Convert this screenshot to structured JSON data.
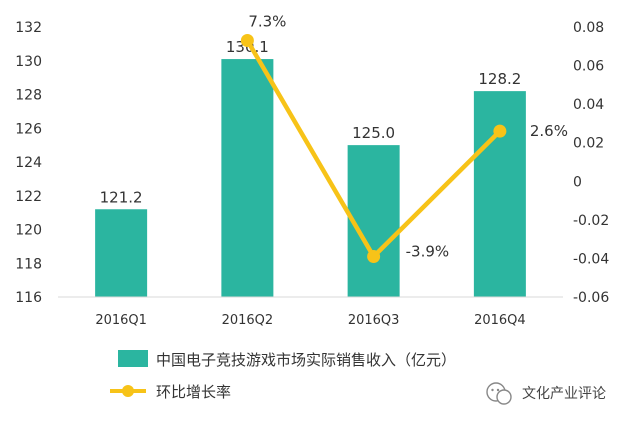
{
  "chart_data": {
    "type": "bar",
    "categories": [
      "2016Q1",
      "2016Q2",
      "2016Q3",
      "2016Q4"
    ],
    "series": [
      {
        "name": "中国电子竞技游戏市场实际销售收入（亿元）",
        "kind": "bar",
        "axis": "left",
        "values": [
          121.2,
          130.1,
          125.0,
          128.2
        ],
        "labels": [
          "121.2",
          "130.1",
          "125.0",
          "128.2"
        ],
        "color": "#2bb5a0"
      },
      {
        "name": "环比增长率",
        "kind": "line",
        "axis": "right",
        "values": [
          null,
          0.073,
          -0.039,
          0.026
        ],
        "labels": [
          "",
          "7.3%",
          "-3.9%",
          "2.6%"
        ],
        "color": "#f7c318"
      }
    ],
    "y_left": {
      "ylim": [
        116,
        132
      ],
      "ticks": [
        116,
        118,
        120,
        122,
        124,
        126,
        128,
        130,
        132
      ],
      "tick_labels": [
        "116",
        "118",
        "120",
        "122",
        "124",
        "126",
        "128",
        "130",
        "132"
      ]
    },
    "y_right": {
      "ylim": [
        -0.06,
        0.08
      ],
      "ticks": [
        -0.06,
        -0.04,
        -0.02,
        0,
        0.02,
        0.04,
        0.06,
        0.08
      ],
      "tick_labels": [
        "-0.06",
        "-0.04",
        "-0.02",
        "0",
        "0.02",
        "0.04",
        "0.06",
        "0.08"
      ]
    },
    "grid": false,
    "legend_position": "bottom-left"
  },
  "watermark": {
    "text": "文化产业评论",
    "icon": "wechat-icon"
  }
}
